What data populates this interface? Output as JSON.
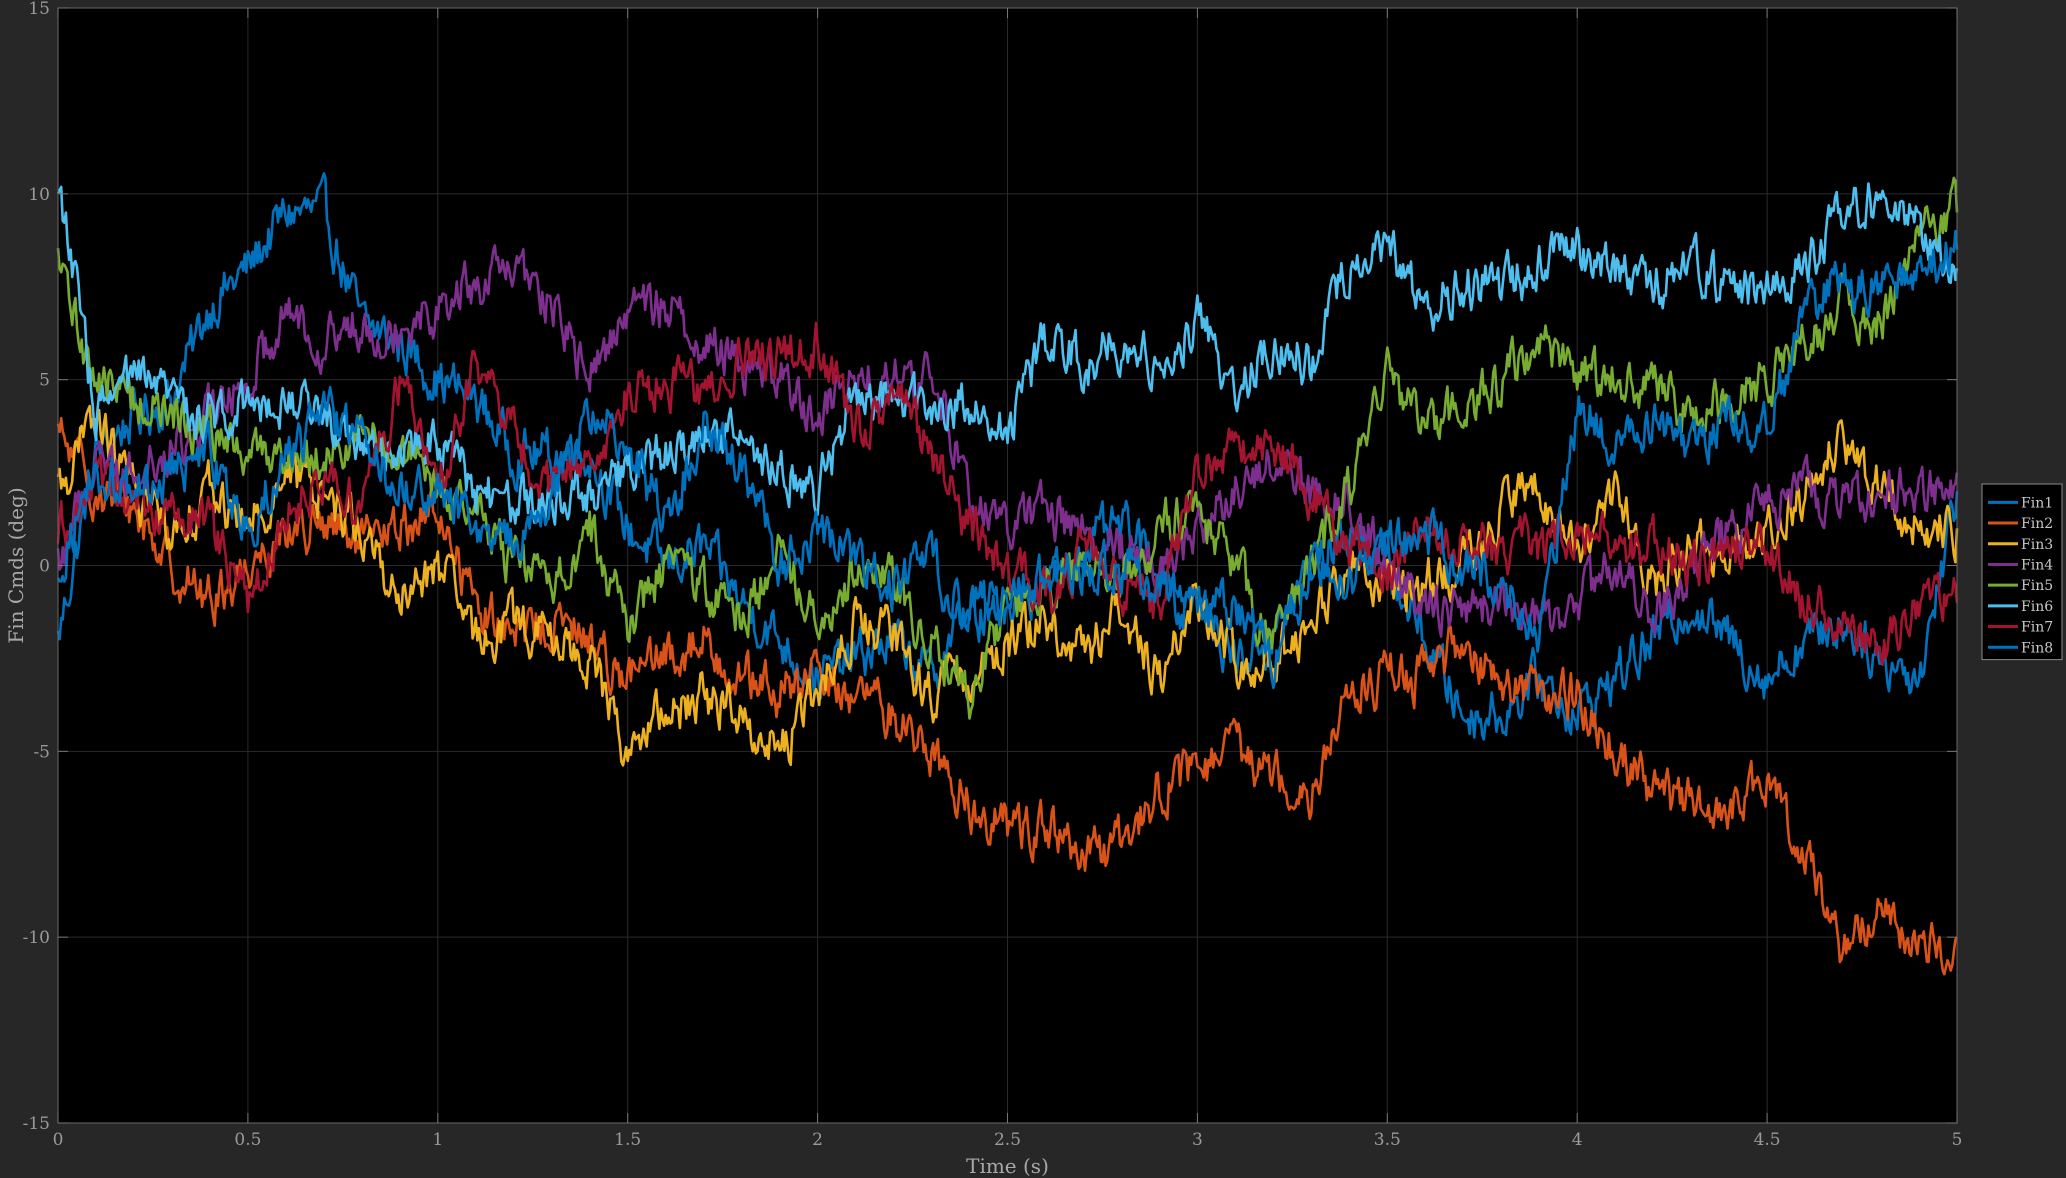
{
  "chart_data": {
    "type": "line",
    "xlabel": "Time (s)",
    "ylabel": "Fin Cmds (deg)",
    "xlim": [
      0,
      5
    ],
    "ylim": [
      -15,
      15
    ],
    "grid": true,
    "legend_position": "outside-right",
    "xticks": [
      0,
      0.5,
      1,
      1.5,
      2,
      2.5,
      3,
      3.5,
      4,
      4.5,
      5
    ],
    "yticks": [
      -15,
      -10,
      -5,
      0,
      5,
      10,
      15
    ],
    "xtick_labels": [
      "0",
      "0.5",
      "1",
      "1.5",
      "2",
      "2.5",
      "3",
      "3.5",
      "4",
      "4.5",
      "5"
    ],
    "ytick_labels": [
      "-15",
      "-10",
      "-5",
      "0",
      "5",
      "10",
      "15"
    ],
    "x": [
      0,
      0.1,
      0.2,
      0.3,
      0.4,
      0.5,
      0.6,
      0.7,
      0.8,
      0.9,
      1.0,
      1.1,
      1.2,
      1.3,
      1.4,
      1.5,
      1.6,
      1.7,
      1.8,
      1.9,
      2.0,
      2.1,
      2.2,
      2.3,
      2.4,
      2.5,
      2.6,
      2.7,
      2.8,
      2.9,
      3.0,
      3.1,
      3.2,
      3.3,
      3.4,
      3.5,
      3.6,
      3.7,
      3.8,
      3.9,
      4.0,
      4.1,
      4.2,
      4.3,
      4.4,
      4.5,
      4.6,
      4.7,
      4.8,
      4.9,
      5.0
    ],
    "series": [
      {
        "name": "Fin1",
        "color": "#0072BD",
        "values": [
          -2,
          3,
          4,
          4.5,
          7,
          8,
          9.5,
          9.5,
          6.5,
          6,
          5,
          4.5,
          3,
          3,
          3,
          1,
          0,
          0.5,
          -1,
          -2,
          -3,
          -2.5,
          -2,
          -3,
          -1,
          -1,
          -0.5,
          0.5,
          1,
          0,
          -1,
          -2.5,
          -2,
          0,
          1,
          0,
          -2,
          -4,
          -4,
          -3,
          -4,
          -3,
          -2,
          -1,
          -2,
          -3,
          -2,
          -1.5,
          -2.5,
          -3,
          2
        ]
      },
      {
        "name": "Fin2",
        "color": "#D95319",
        "values": [
          3.5,
          2,
          1.5,
          0,
          -1,
          0,
          1,
          1,
          0.5,
          1,
          1.5,
          -1,
          -2,
          -1.5,
          -2,
          -3,
          -2.5,
          -2,
          -3,
          -3.5,
          -3,
          -3.5,
          -4,
          -5,
          -6.5,
          -7,
          -7,
          -8,
          -7.5,
          -6,
          -5.5,
          -5,
          -5.5,
          -6,
          -3.5,
          -3,
          -3,
          -2,
          -3,
          -3.5,
          -3.5,
          -5,
          -6,
          -6.5,
          -6.5,
          -6,
          -7.5,
          -10.5,
          -9,
          -10.5,
          -10
        ]
      },
      {
        "name": "Fin3",
        "color": "#EDB120",
        "values": [
          2,
          4,
          2,
          1,
          2,
          1,
          2.5,
          2,
          1,
          -1,
          0,
          -2,
          -1.5,
          -2,
          -2.5,
          -5,
          -4,
          -3.5,
          -4,
          -5,
          -3.5,
          -1.5,
          -2,
          -3.5,
          -3,
          -2,
          -1.5,
          -2.5,
          -1,
          -3,
          -1,
          -2.5,
          -2.5,
          -1.5,
          0,
          -0.5,
          -0.5,
          0,
          1.5,
          2,
          0.5,
          2,
          -0.5,
          0.5,
          0.5,
          1,
          2,
          3.5,
          2,
          1,
          1
        ]
      },
      {
        "name": "Fin4",
        "color": "#7E2F8E",
        "values": [
          0,
          3,
          2.5,
          3,
          4,
          5,
          7,
          6,
          6.5,
          6.5,
          7,
          7.5,
          8,
          7,
          5,
          7,
          7,
          6,
          5.5,
          5,
          4,
          5,
          5,
          5,
          2,
          1,
          1.5,
          1,
          0.5,
          0,
          1,
          2,
          3,
          2,
          1.5,
          0,
          -1,
          -1,
          -1,
          -1.5,
          -1,
          0,
          -1.5,
          0,
          1,
          1.5,
          2,
          1.5,
          2,
          2,
          2.5
        ]
      },
      {
        "name": "Fin5",
        "color": "#77AC30",
        "values": [
          8,
          5,
          4.5,
          4,
          3.5,
          3,
          3,
          3,
          3.5,
          3,
          2,
          1.5,
          0,
          -0.5,
          1,
          -1.5,
          0,
          -0.5,
          -1.5,
          0.5,
          -1.5,
          0,
          -0.5,
          -2,
          -3.5,
          -1,
          -1,
          0,
          -0.5,
          1,
          1.5,
          0,
          -2,
          0,
          2,
          5,
          4,
          4,
          5,
          6,
          5,
          5,
          5,
          4,
          4.5,
          5,
          6,
          7,
          6.5,
          9,
          9.5
        ]
      },
      {
        "name": "Fin6",
        "color": "#4DBEEE",
        "values": [
          10.5,
          4,
          5,
          4.5,
          4,
          4.5,
          4.5,
          4,
          3.5,
          3,
          3.5,
          2,
          1.5,
          2,
          2,
          2.5,
          3,
          3.5,
          3.5,
          2.5,
          2,
          4.5,
          4.5,
          4,
          4.5,
          3.5,
          6,
          5.5,
          6,
          5.5,
          6.5,
          4.5,
          6,
          5.5,
          8,
          8.5,
          7,
          7.5,
          7.5,
          8,
          8.5,
          8,
          7.5,
          8,
          7.5,
          7.5,
          8,
          9.5,
          10,
          9,
          8
        ]
      },
      {
        "name": "Fin7",
        "color": "#A2142F",
        "values": [
          1,
          2,
          1.5,
          1.5,
          1,
          -1,
          1.5,
          2.5,
          1.5,
          5,
          2,
          5.5,
          3.5,
          2,
          3,
          4.5,
          5,
          4.5,
          5.5,
          5.5,
          6,
          3.5,
          4.5,
          3,
          1,
          0,
          -1,
          0.5,
          -0.5,
          -1,
          2.5,
          3,
          3.5,
          2,
          0.5,
          0,
          1,
          0.5,
          0.5,
          0.5,
          1,
          0.5,
          0.5,
          0,
          0.5,
          0.5,
          -1,
          -1.5,
          -2.5,
          -1,
          -1
        ]
      },
      {
        "name": "Fin8",
        "color": "#0072BD",
        "values": [
          0,
          2.5,
          2,
          2.5,
          3,
          1,
          3,
          4,
          3.5,
          2,
          2,
          1,
          0.5,
          2,
          4,
          3.5,
          1,
          4,
          2.5,
          0,
          1,
          0,
          -0.5,
          0,
          -1.5,
          -1,
          0,
          0,
          0,
          -0.5,
          -1.5,
          -1,
          -2.5,
          0,
          -0.5,
          0.5,
          1,
          0,
          -0.5,
          -2,
          4,
          3.5,
          4,
          3,
          4,
          3.5,
          7,
          7.5,
          7.5,
          8,
          8.5
        ]
      }
    ]
  }
}
